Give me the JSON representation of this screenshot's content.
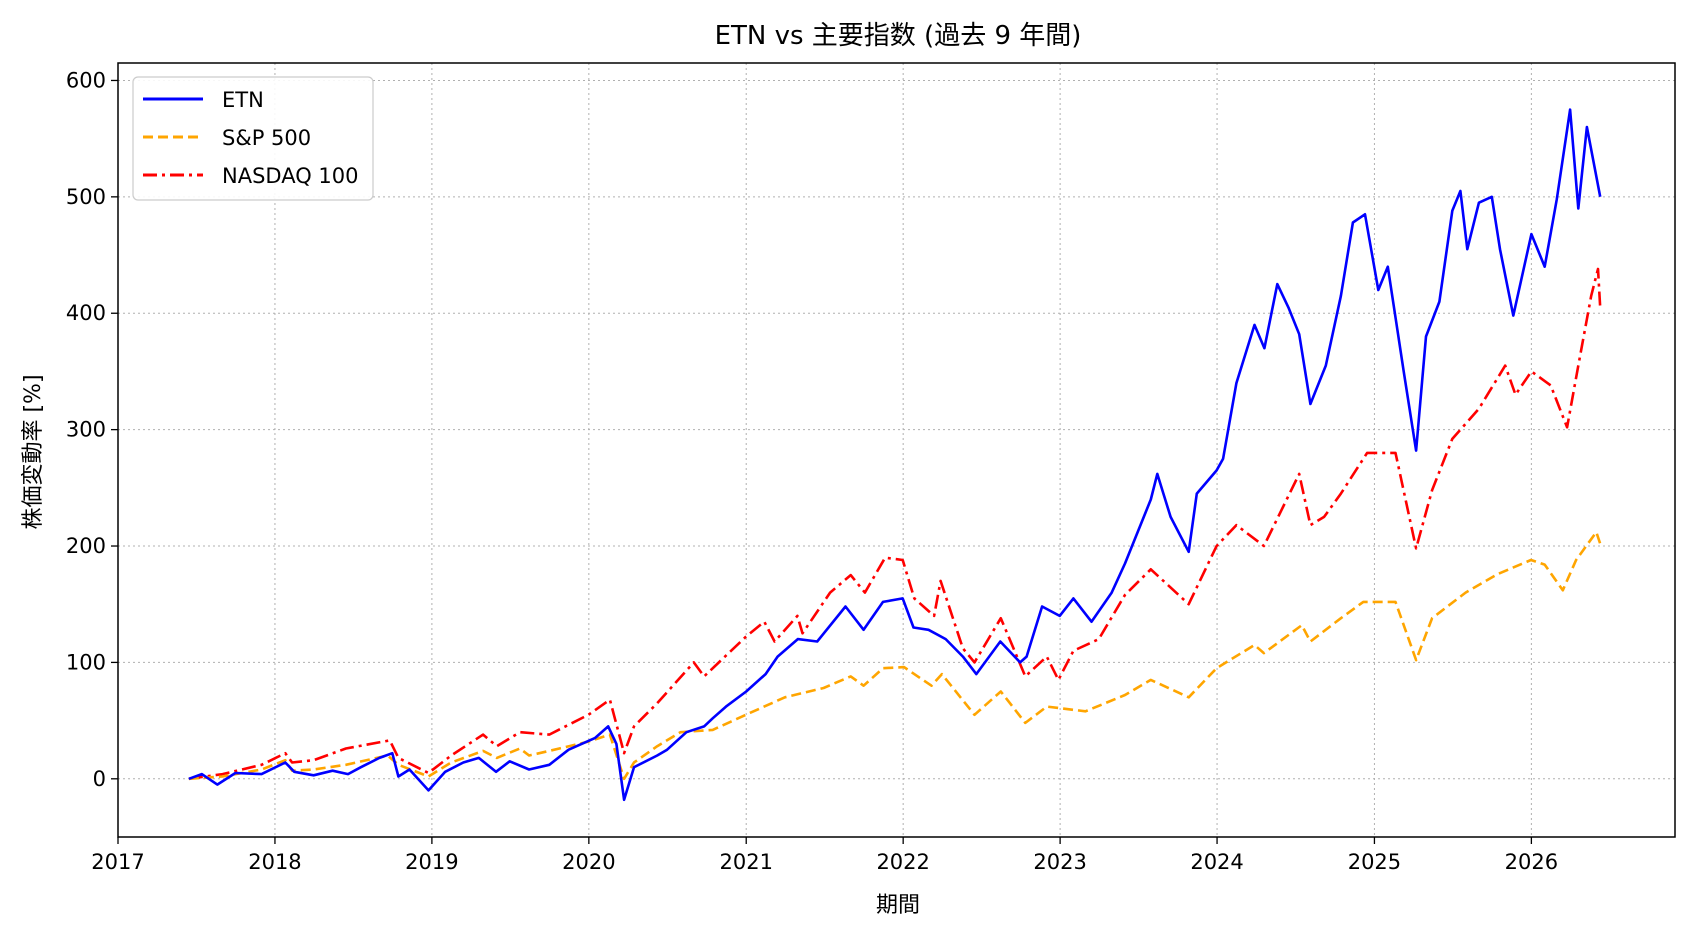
{
  "chart_data": {
    "type": "line",
    "title": "ETN vs 主要指数 (過去 9 年間)",
    "xlabel": "期間",
    "ylabel": "株価変動率 [%]",
    "xlim": [
      "2017-01-01",
      "2026-12-01"
    ],
    "ylim": [
      -50,
      615
    ],
    "x_ticks": [
      "2017",
      "2018",
      "2019",
      "2020",
      "2021",
      "2022",
      "2023",
      "2024",
      "2025",
      "2026"
    ],
    "y_ticks": [
      0,
      100,
      200,
      300,
      400,
      500,
      600
    ],
    "y_tick_labels": [
      "0",
      "100",
      "200",
      "300",
      "400",
      "500",
      "600"
    ],
    "grid": true,
    "legend_position": "upper left",
    "series": [
      {
        "name": "ETN",
        "color": "#0000ff",
        "line_style": "solid",
        "points": [
          [
            "2017-06-15",
            0
          ],
          [
            "2017-07-15",
            4
          ],
          [
            "2017-08-20",
            -5
          ],
          [
            "2017-10-01",
            5
          ],
          [
            "2017-12-01",
            4
          ],
          [
            "2018-01-25",
            14
          ],
          [
            "2018-02-15",
            6
          ],
          [
            "2018-04-01",
            3
          ],
          [
            "2018-05-15",
            7
          ],
          [
            "2018-06-20",
            4
          ],
          [
            "2018-07-20",
            10
          ],
          [
            "2018-09-01",
            18
          ],
          [
            "2018-10-01",
            22
          ],
          [
            "2018-10-15",
            2
          ],
          [
            "2018-11-10",
            8
          ],
          [
            "2018-12-24",
            -10
          ],
          [
            "2019-02-01",
            6
          ],
          [
            "2019-03-15",
            14
          ],
          [
            "2019-04-20",
            18
          ],
          [
            "2019-05-30",
            6
          ],
          [
            "2019-07-01",
            15
          ],
          [
            "2019-08-15",
            8
          ],
          [
            "2019-10-01",
            12
          ],
          [
            "2019-11-15",
            25
          ],
          [
            "2020-01-15",
            35
          ],
          [
            "2020-02-15",
            45
          ],
          [
            "2020-03-05",
            30
          ],
          [
            "2020-03-23",
            -18
          ],
          [
            "2020-04-15",
            10
          ],
          [
            "2020-06-08",
            20
          ],
          [
            "2020-07-01",
            25
          ],
          [
            "2020-08-15",
            40
          ],
          [
            "2020-09-25",
            45
          ],
          [
            "2020-10-15",
            52
          ],
          [
            "2020-11-15",
            62
          ],
          [
            "2021-01-01",
            75
          ],
          [
            "2021-02-15",
            90
          ],
          [
            "2021-03-15",
            105
          ],
          [
            "2021-05-01",
            120
          ],
          [
            "2021-06-15",
            118
          ],
          [
            "2021-08-20",
            148
          ],
          [
            "2021-10-01",
            128
          ],
          [
            "2021-11-15",
            152
          ],
          [
            "2021-12-31",
            155
          ],
          [
            "2022-01-25",
            130
          ],
          [
            "2022-03-01",
            128
          ],
          [
            "2022-04-10",
            120
          ],
          [
            "2022-05-20",
            105
          ],
          [
            "2022-06-20",
            90
          ],
          [
            "2022-08-15",
            118
          ],
          [
            "2022-09-30",
            100
          ],
          [
            "2022-10-15",
            105
          ],
          [
            "2022-11-20",
            148
          ],
          [
            "2022-12-31",
            140
          ],
          [
            "2023-02-01",
            155
          ],
          [
            "2023-03-15",
            135
          ],
          [
            "2023-05-01",
            160
          ],
          [
            "2023-06-01",
            185
          ],
          [
            "2023-07-31",
            240
          ],
          [
            "2023-08-15",
            262
          ],
          [
            "2023-09-15",
            225
          ],
          [
            "2023-10-27",
            195
          ],
          [
            "2023-11-15",
            245
          ],
          [
            "2023-12-31",
            265
          ],
          [
            "2024-01-15",
            275
          ],
          [
            "2024-02-15",
            340
          ],
          [
            "2024-03-28",
            390
          ],
          [
            "2024-04-20",
            370
          ],
          [
            "2024-05-20",
            425
          ],
          [
            "2024-06-15",
            405
          ],
          [
            "2024-07-10",
            382
          ],
          [
            "2024-08-05",
            322
          ],
          [
            "2024-09-10",
            355
          ],
          [
            "2024-10-15",
            415
          ],
          [
            "2024-11-12",
            478
          ],
          [
            "2024-12-10",
            485
          ],
          [
            "2025-01-10",
            420
          ],
          [
            "2025-02-01",
            440
          ],
          [
            "2025-03-10",
            350
          ],
          [
            "2025-04-08",
            282
          ],
          [
            "2025-05-01",
            380
          ],
          [
            "2025-06-01",
            410
          ],
          [
            "2025-07-01",
            488
          ],
          [
            "2025-07-20",
            505
          ],
          [
            "2025-08-05",
            455
          ],
          [
            "2025-09-01",
            495
          ],
          [
            "2025-10-01",
            500
          ],
          [
            "2025-10-20",
            455
          ],
          [
            "2025-11-20",
            398
          ],
          [
            "2026-01-01",
            468
          ],
          [
            "2026-02-01",
            440
          ],
          [
            "2026-03-01",
            498
          ],
          [
            "2026-04-01",
            575
          ],
          [
            "2026-04-20",
            490
          ],
          [
            "2026-05-10",
            560
          ],
          [
            "2026-06-10",
            500
          ]
        ]
      },
      {
        "name": "S&P 500",
        "color": "#ffa500",
        "line_style": "dashed",
        "points": [
          [
            "2017-06-15",
            0
          ],
          [
            "2017-09-01",
            2
          ],
          [
            "2017-12-01",
            8
          ],
          [
            "2018-01-25",
            16
          ],
          [
            "2018-02-10",
            7
          ],
          [
            "2018-04-01",
            8
          ],
          [
            "2018-06-15",
            12
          ],
          [
            "2018-09-20",
            20
          ],
          [
            "2018-10-15",
            12
          ],
          [
            "2018-12-24",
            2
          ],
          [
            "2019-02-15",
            14
          ],
          [
            "2019-04-30",
            24
          ],
          [
            "2019-06-01",
            18
          ],
          [
            "2019-07-25",
            26
          ],
          [
            "2019-08-15",
            20
          ],
          [
            "2019-10-01",
            24
          ],
          [
            "2019-12-31",
            32
          ],
          [
            "2020-02-19",
            38
          ],
          [
            "2020-03-23",
            0
          ],
          [
            "2020-04-15",
            14
          ],
          [
            "2020-06-08",
            28
          ],
          [
            "2020-08-01",
            40
          ],
          [
            "2020-10-15",
            42
          ],
          [
            "2020-12-31",
            55
          ],
          [
            "2021-04-01",
            70
          ],
          [
            "2021-06-30",
            78
          ],
          [
            "2021-09-01",
            88
          ],
          [
            "2021-10-01",
            80
          ],
          [
            "2021-11-15",
            95
          ],
          [
            "2022-01-03",
            96
          ],
          [
            "2022-03-08",
            80
          ],
          [
            "2022-04-01",
            90
          ],
          [
            "2022-06-16",
            55
          ],
          [
            "2022-08-16",
            75
          ],
          [
            "2022-10-12",
            48
          ],
          [
            "2022-12-01",
            62
          ],
          [
            "2023-03-01",
            58
          ],
          [
            "2023-06-01",
            72
          ],
          [
            "2023-07-31",
            85
          ],
          [
            "2023-10-27",
            70
          ],
          [
            "2023-12-31",
            95
          ],
          [
            "2024-03-28",
            115
          ],
          [
            "2024-04-19",
            108
          ],
          [
            "2024-07-16",
            132
          ],
          [
            "2024-08-05",
            118
          ],
          [
            "2024-10-15",
            138
          ],
          [
            "2024-12-06",
            152
          ],
          [
            "2025-02-19",
            152
          ],
          [
            "2025-04-08",
            102
          ],
          [
            "2025-05-15",
            138
          ],
          [
            "2025-08-01",
            160
          ],
          [
            "2025-10-15",
            176
          ],
          [
            "2025-12-31",
            188
          ],
          [
            "2026-02-01",
            184
          ],
          [
            "2026-03-15",
            162
          ],
          [
            "2026-04-15",
            188
          ],
          [
            "2026-06-01",
            212
          ],
          [
            "2026-06-10",
            202
          ]
        ]
      },
      {
        "name": "NASDAQ 100",
        "color": "#ff0000",
        "line_style": "dashdot",
        "points": [
          [
            "2017-06-15",
            0
          ],
          [
            "2017-09-01",
            4
          ],
          [
            "2017-12-01",
            12
          ],
          [
            "2018-01-25",
            22
          ],
          [
            "2018-02-10",
            14
          ],
          [
            "2018-04-01",
            16
          ],
          [
            "2018-06-15",
            26
          ],
          [
            "2018-09-25",
            33
          ],
          [
            "2018-10-15",
            18
          ],
          [
            "2018-12-24",
            5
          ],
          [
            "2019-02-15",
            20
          ],
          [
            "2019-04-30",
            38
          ],
          [
            "2019-06-01",
            28
          ],
          [
            "2019-07-25",
            40
          ],
          [
            "2019-10-01",
            38
          ],
          [
            "2019-12-31",
            55
          ],
          [
            "2020-02-19",
            68
          ],
          [
            "2020-03-23",
            22
          ],
          [
            "2020-04-15",
            45
          ],
          [
            "2020-06-08",
            65
          ],
          [
            "2020-09-01",
            100
          ],
          [
            "2020-09-25",
            88
          ],
          [
            "2020-12-31",
            122
          ],
          [
            "2021-02-12",
            135
          ],
          [
            "2021-03-08",
            118
          ],
          [
            "2021-04-30",
            140
          ],
          [
            "2021-05-12",
            125
          ],
          [
            "2021-07-15",
            160
          ],
          [
            "2021-09-01",
            175
          ],
          [
            "2021-10-04",
            160
          ],
          [
            "2021-11-20",
            190
          ],
          [
            "2021-12-31",
            188
          ],
          [
            "2022-01-27",
            155
          ],
          [
            "2022-03-14",
            140
          ],
          [
            "2022-03-29",
            170
          ],
          [
            "2022-05-20",
            112
          ],
          [
            "2022-06-16",
            100
          ],
          [
            "2022-08-16",
            138
          ],
          [
            "2022-10-12",
            88
          ],
          [
            "2022-12-01",
            105
          ],
          [
            "2022-12-28",
            85
          ],
          [
            "2023-02-01",
            110
          ],
          [
            "2023-04-01",
            120
          ],
          [
            "2023-06-01",
            158
          ],
          [
            "2023-07-31",
            180
          ],
          [
            "2023-10-27",
            150
          ],
          [
            "2023-12-31",
            200
          ],
          [
            "2024-02-15",
            218
          ],
          [
            "2024-04-19",
            200
          ],
          [
            "2024-07-10",
            262
          ],
          [
            "2024-08-05",
            218
          ],
          [
            "2024-09-06",
            225
          ],
          [
            "2024-10-15",
            245
          ],
          [
            "2024-12-15",
            280
          ],
          [
            "2025-02-19",
            280
          ],
          [
            "2025-04-08",
            198
          ],
          [
            "2025-05-15",
            248
          ],
          [
            "2025-07-01",
            292
          ],
          [
            "2025-09-01",
            318
          ],
          [
            "2025-11-01",
            355
          ],
          [
            "2025-11-25",
            330
          ],
          [
            "2026-01-01",
            350
          ],
          [
            "2026-02-15",
            338
          ],
          [
            "2026-03-25",
            302
          ],
          [
            "2026-04-20",
            355
          ],
          [
            "2026-05-20",
            415
          ],
          [
            "2026-06-05",
            438
          ],
          [
            "2026-06-10",
            405
          ]
        ]
      }
    ]
  }
}
